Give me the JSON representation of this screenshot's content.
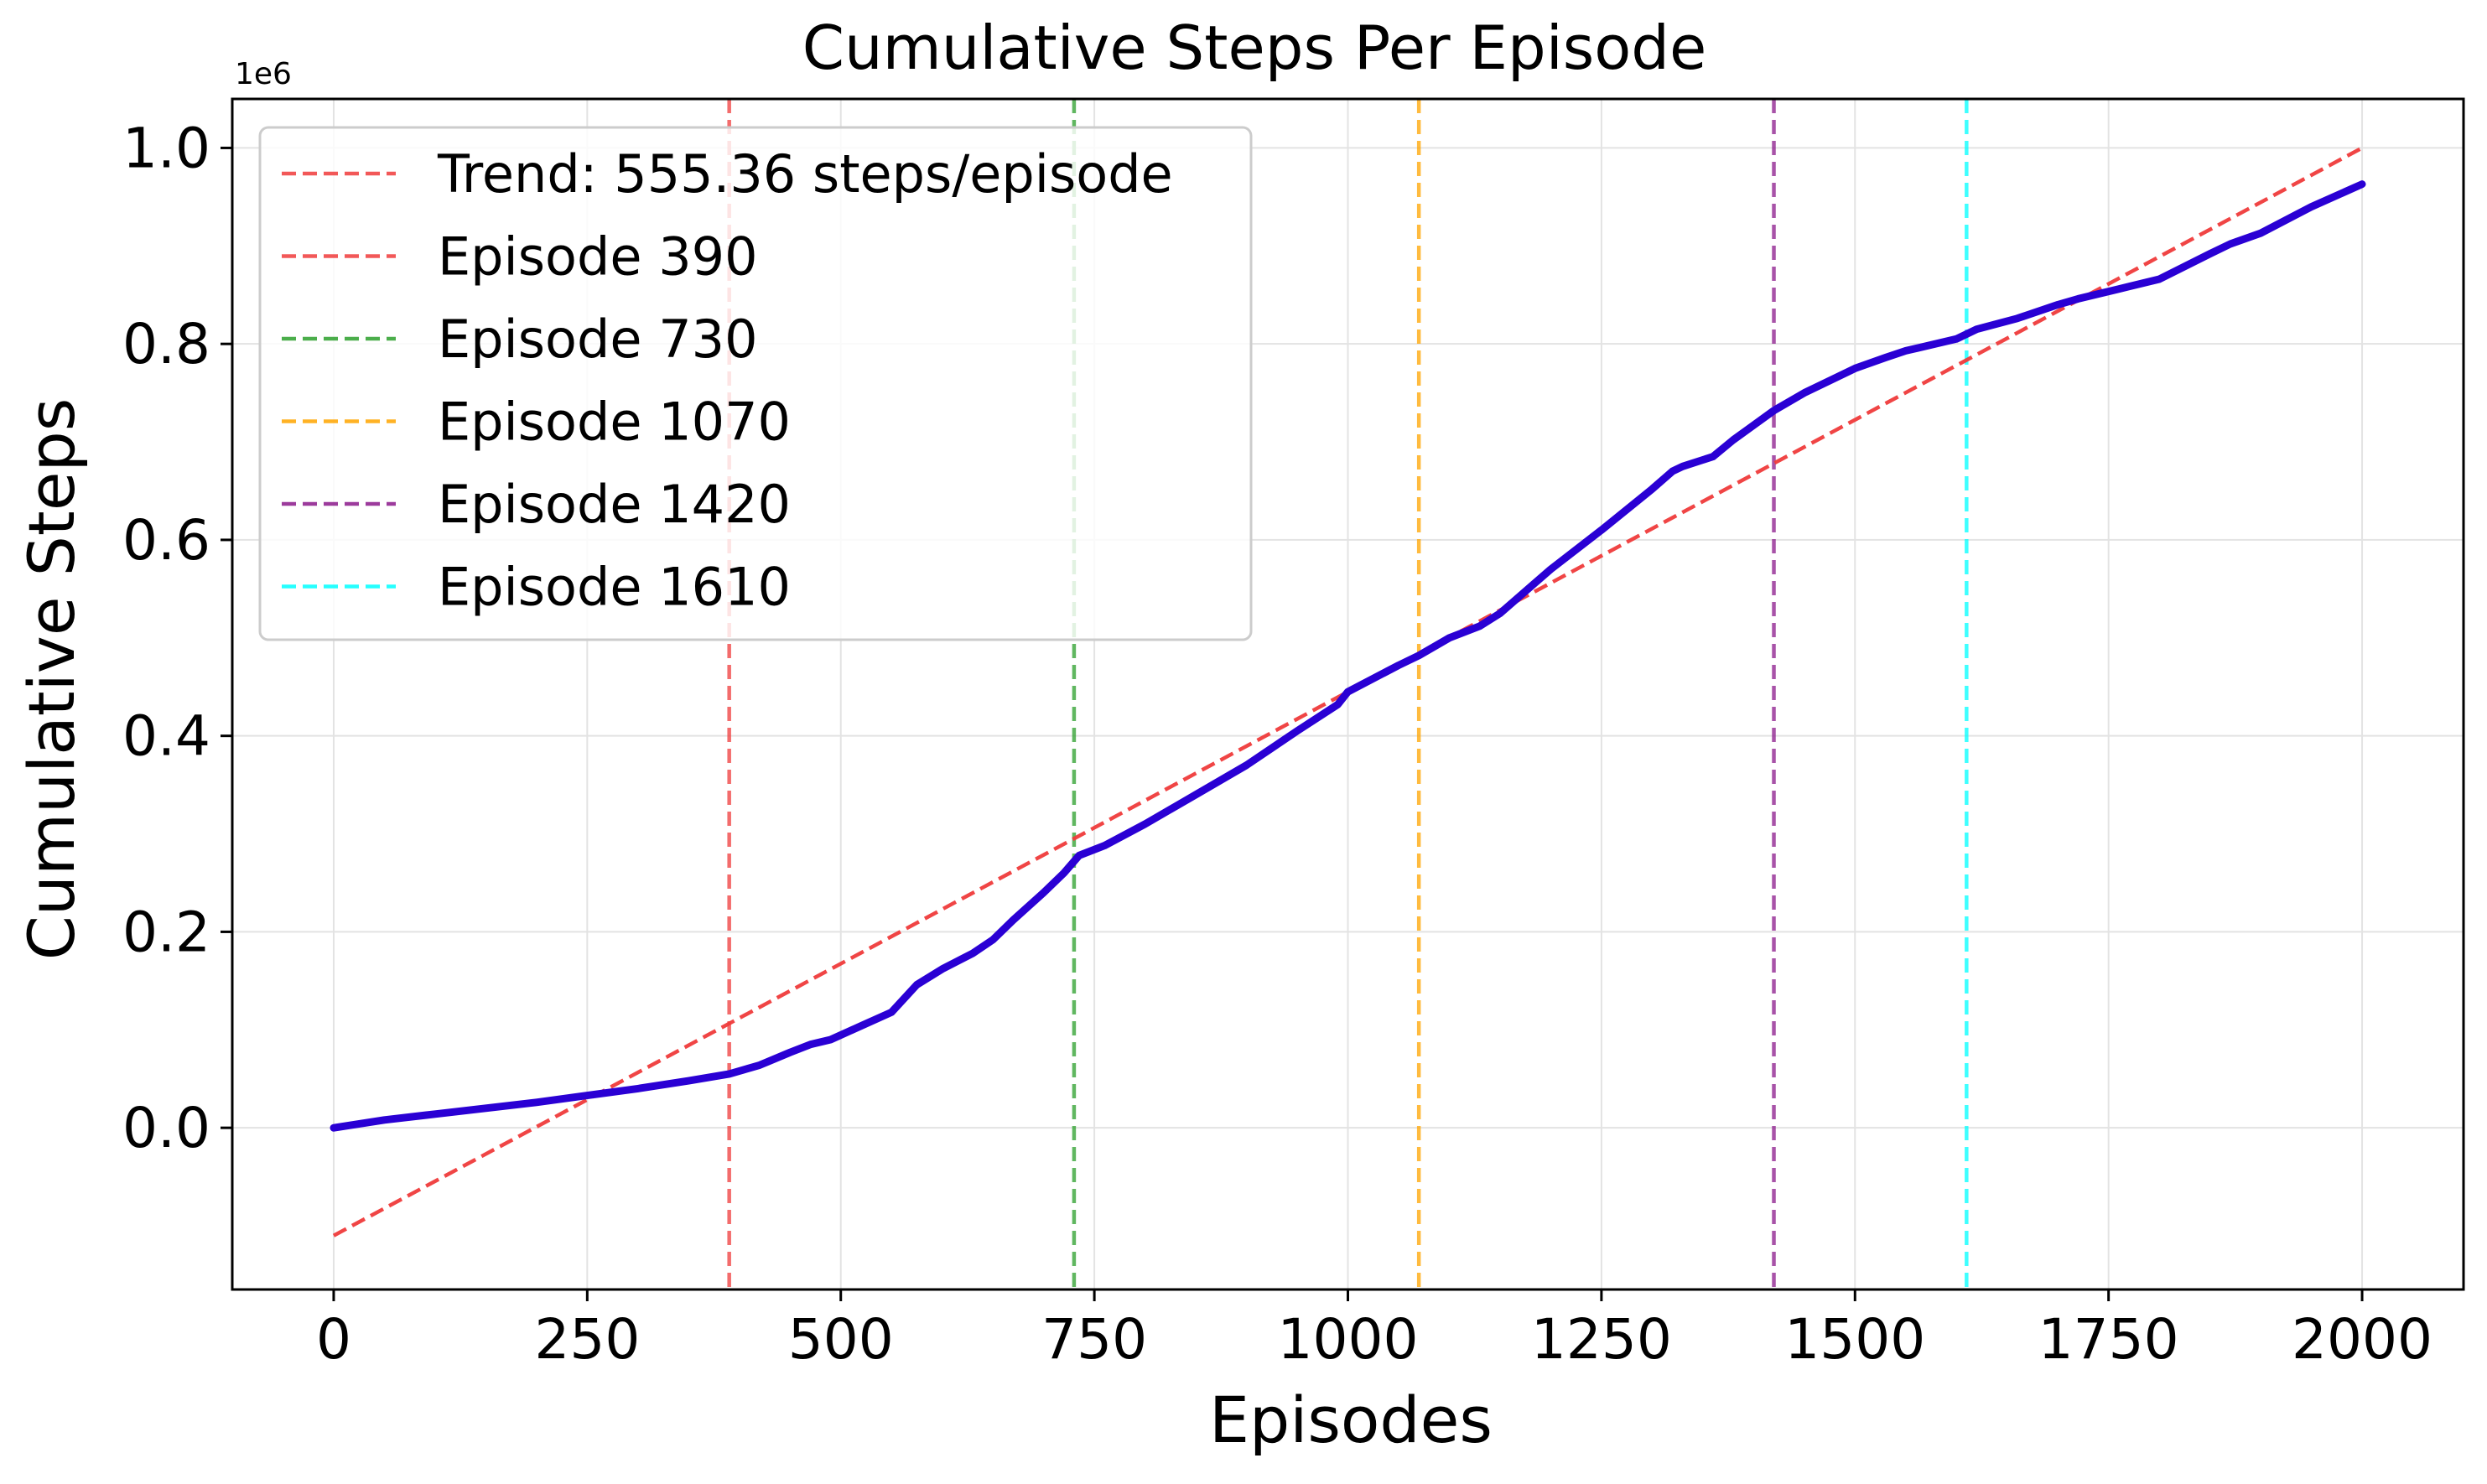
{
  "chart_data": {
    "type": "line",
    "title": "Cumulative Steps Per Episode",
    "xlabel": "Episodes",
    "ylabel": "Cumulative Steps",
    "y_offset_label": "1e6",
    "xlim": [
      -100,
      2100
    ],
    "ylim": [
      -0.165,
      1.05
    ],
    "xticks": [
      0,
      250,
      500,
      750,
      1000,
      1250,
      1500,
      1750,
      2000
    ],
    "xtick_labels": [
      "0",
      "250",
      "500",
      "750",
      "1000",
      "1250",
      "1500",
      "1750",
      "2000"
    ],
    "yticks": [
      0.0,
      0.2,
      0.4,
      0.6,
      0.8,
      1.0
    ],
    "ytick_labels": [
      "0.0",
      "0.2",
      "0.4",
      "0.6",
      "0.8",
      "1.0"
    ],
    "grid": true,
    "legend_position": "upper-left",
    "series": [
      {
        "color": "#2a00d4",
        "x": [
          0,
          50,
          100,
          150,
          200,
          250,
          300,
          350,
          390,
          420,
          450,
          470,
          490,
          520,
          550,
          575,
          600,
          630,
          650,
          670,
          700,
          720,
          735,
          760,
          800,
          850,
          900,
          950,
          990,
          1000,
          1050,
          1070,
          1100,
          1130,
          1150,
          1180,
          1200,
          1250,
          1300,
          1320,
          1330,
          1360,
          1380,
          1420,
          1450,
          1500,
          1530,
          1550,
          1600,
          1620,
          1660,
          1700,
          1720,
          1760,
          1800,
          1850,
          1870,
          1900,
          1950,
          2000
        ],
        "y": [
          0.0,
          0.008,
          0.014,
          0.02,
          0.026,
          0.033,
          0.04,
          0.048,
          0.055,
          0.064,
          0.077,
          0.085,
          0.09,
          0.104,
          0.118,
          0.146,
          0.162,
          0.178,
          0.192,
          0.212,
          0.24,
          0.26,
          0.278,
          0.288,
          0.31,
          0.34,
          0.37,
          0.405,
          0.432,
          0.445,
          0.472,
          0.482,
          0.5,
          0.512,
          0.525,
          0.552,
          0.57,
          0.61,
          0.652,
          0.67,
          0.675,
          0.685,
          0.702,
          0.732,
          0.75,
          0.775,
          0.786,
          0.793,
          0.805,
          0.815,
          0.826,
          0.84,
          0.846,
          0.856,
          0.866,
          0.892,
          0.902,
          0.913,
          0.94,
          0.963
        ]
      }
    ],
    "trend": {
      "label": "Trend: 555.36 steps/episode",
      "color": "#f03c3c",
      "x": [
        0,
        2000
      ],
      "y": [
        -0.11,
        1.0
      ]
    },
    "vlines": [
      {
        "x": 390,
        "label": "Episode 390",
        "color": "#f03c3c"
      },
      {
        "x": 730,
        "label": "Episode 730",
        "color": "#2ca02c"
      },
      {
        "x": 1070,
        "label": "Episode 1070",
        "color": "#ffa500"
      },
      {
        "x": 1420,
        "label": "Episode 1420",
        "color": "#8b1a8b"
      },
      {
        "x": 1610,
        "label": "Episode 1610",
        "color": "#00ffff"
      }
    ]
  }
}
